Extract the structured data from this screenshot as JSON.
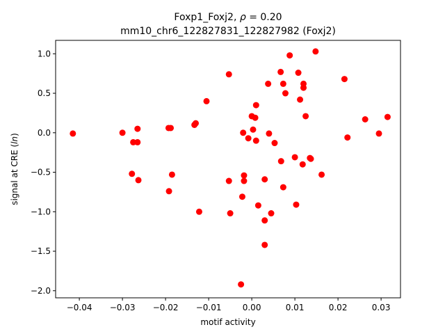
{
  "chart_data": {
    "type": "scatter",
    "title_line1_prefix": "Foxp1_Foxj2, ",
    "title_rho_symbol": "ρ",
    "title_rho_value": " = 0.20",
    "title_line2": "mm10_chr6_122827831_122827982 (Foxj2)",
    "xlabel": "motif activity",
    "ylabel_prefix": "signal at CRE (",
    "ylabel_math": "ln",
    "ylabel_suffix": ")",
    "xlim": [
      -0.0455,
      0.0345
    ],
    "ylim": [
      -2.09,
      1.17
    ],
    "x_ticks": [
      -0.04,
      -0.03,
      -0.02,
      -0.01,
      0.0,
      0.01,
      0.02,
      0.03
    ],
    "x_tick_labels": [
      "−0.04",
      "−0.03",
      "−0.02",
      "−0.01",
      "0.00",
      "0.01",
      "0.02",
      "0.03"
    ],
    "y_ticks": [
      1.0,
      0.5,
      0.0,
      -0.5,
      -1.0,
      -1.5,
      -2.0
    ],
    "y_tick_labels": [
      "1.0",
      "0.5",
      "0.0",
      "−0.5",
      "−1.0",
      "−1.5",
      "−2.0"
    ],
    "grid": false,
    "point_color": "#ff0000",
    "x": [
      -0.0415,
      -0.03,
      -0.0265,
      -0.0275,
      -0.0265,
      -0.0278,
      -0.0263,
      -0.0193,
      -0.0188,
      -0.0192,
      -0.0185,
      -0.0133,
      -0.013,
      -0.0105,
      -0.0122,
      -0.0053,
      -0.0053,
      -0.005,
      -0.002,
      -0.0018,
      -0.0018,
      -0.0022,
      -0.0025,
      -0.0008,
      0.0,
      0.0003,
      0.0008,
      0.001,
      0.001,
      0.0015,
      0.003,
      0.003,
      0.003,
      0.0038,
      0.004,
      0.0045,
      0.0053,
      0.0067,
      0.0068,
      0.0073,
      0.0073,
      0.0078,
      0.0088,
      0.01,
      0.0103,
      0.0108,
      0.0112,
      0.0118,
      0.012,
      0.012,
      0.0125,
      0.0135,
      0.0137,
      0.0148,
      0.0162,
      0.0215,
      0.0222,
      0.0263,
      0.0295,
      0.0315
    ],
    "y": [
      -0.01,
      0.0,
      0.05,
      -0.12,
      -0.12,
      -0.52,
      -0.6,
      0.06,
      0.06,
      -0.74,
      -0.53,
      0.1,
      0.12,
      0.4,
      -1.0,
      0.74,
      -0.61,
      -1.02,
      0.0,
      -0.54,
      -0.61,
      -0.81,
      -1.92,
      -0.07,
      0.21,
      0.04,
      0.19,
      -0.1,
      0.35,
      -0.92,
      -0.59,
      -1.11,
      -1.42,
      0.62,
      -0.01,
      -1.02,
      -0.13,
      0.77,
      -0.36,
      0.62,
      -0.69,
      0.5,
      0.98,
      -0.31,
      -0.91,
      0.76,
      0.42,
      -0.4,
      0.62,
      0.57,
      0.21,
      -0.32,
      -0.33,
      1.03,
      -0.53,
      0.68,
      -0.06,
      0.17,
      -0.01,
      0.2
    ]
  }
}
